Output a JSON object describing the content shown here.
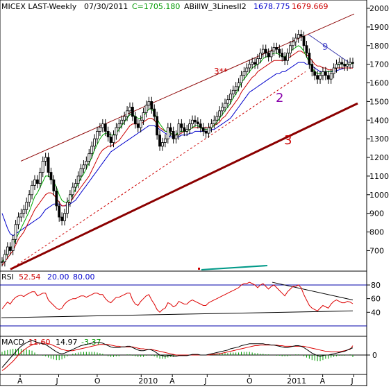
{
  "header": {
    "symbol": "MICEX LAST-Weekly",
    "date": "07/30/2011",
    "close_label": "C=1705.180",
    "indicator_name": "ABillW_3LinesII2",
    "indicator_value_1": "1678.775",
    "indicator_value_2": "1679.669"
  },
  "annotations": {
    "channel_upper": "3**",
    "channel_mid": "2",
    "channel_main": "3",
    "wave_label": "9"
  },
  "rsi": {
    "label": "RSI",
    "value": "52.54",
    "low": "20.00",
    "high": "80.00",
    "levels": [
      40,
      60,
      80
    ],
    "tick_labels": [
      "80",
      "60",
      "40"
    ]
  },
  "macd": {
    "label": "MACD",
    "value": "11.60",
    "signal": "14.97",
    "histogram": "-3.37",
    "tick_labels": [
      "0"
    ]
  },
  "x_axis": {
    "tick_labels": [
      "A",
      "J",
      "O",
      "2010",
      "A",
      "J",
      "O",
      "2011",
      "A",
      "J"
    ]
  },
  "colors": {
    "price_bars": "#000000",
    "sma_red": "#cc0000",
    "sma_green": "#00aa00",
    "sma_blue": "#0000cc",
    "channel": "#8b0000",
    "dashed": "#cc0000",
    "rsi": "#dd0000",
    "macd": "#000000",
    "signal": "#dd0000",
    "level_line": "#0000aa",
    "teal_marker": "#009988"
  },
  "chart_data": {
    "type": "candlestick",
    "y_ticks": [
      700,
      800,
      900,
      1000,
      1100,
      1200,
      1300,
      1400,
      1500,
      1600,
      1700,
      1800,
      1900,
      2000
    ],
    "ylim": [
      590,
      2000
    ],
    "weeks": 130,
    "close": [
      640,
      680,
      720,
      700,
      760,
      840,
      880,
      900,
      920,
      960,
      1000,
      1050,
      1080,
      1060,
      1120,
      1180,
      1200,
      1120,
      1080,
      1020,
      940,
      880,
      860,
      900,
      960,
      1000,
      1040,
      1060,
      1100,
      1140,
      1160,
      1180,
      1220,
      1260,
      1300,
      1340,
      1360,
      1380,
      1340,
      1310,
      1280,
      1320,
      1360,
      1380,
      1400,
      1420,
      1450,
      1470,
      1420,
      1380,
      1360,
      1400,
      1440,
      1480,
      1500,
      1460,
      1420,
      1320,
      1260,
      1280,
      1300,
      1360,
      1340,
      1300,
      1320,
      1380,
      1360,
      1340,
      1350,
      1380,
      1400,
      1390,
      1380,
      1360,
      1340,
      1330,
      1360,
      1380,
      1400,
      1420,
      1450,
      1470,
      1490,
      1510,
      1540,
      1560,
      1580,
      1600,
      1640,
      1660,
      1680,
      1700,
      1710,
      1700,
      1730,
      1760,
      1780,
      1760,
      1740,
      1770,
      1790,
      1780,
      1760,
      1740,
      1720,
      1760,
      1800,
      1820,
      1840,
      1860,
      1850,
      1800,
      1760,
      1700,
      1660,
      1640,
      1620,
      1640,
      1660,
      1640,
      1620,
      1650,
      1680,
      1700,
      1710,
      1700,
      1690,
      1700,
      1710,
      1705
    ],
    "sma_red": [
      620,
      640,
      660,
      680,
      700,
      730,
      760,
      780,
      800,
      830,
      860,
      890,
      920,
      940,
      960,
      980,
      1000,
      1010,
      1010,
      1000,
      980,
      960,
      940,
      940,
      950,
      960,
      980,
      1000,
      1020,
      1040,
      1060,
      1080,
      1100,
      1130,
      1160,
      1190,
      1220,
      1240,
      1250,
      1260,
      1260,
      1270,
      1280,
      1290,
      1310,
      1330,
      1350,
      1370,
      1380,
      1380,
      1380,
      1380,
      1390,
      1400,
      1410,
      1410,
      1400,
      1380,
      1360,
      1350,
      1340,
      1340,
      1330,
      1320,
      1320,
      1330,
      1330,
      1340,
      1340,
      1350,
      1360,
      1360,
      1360,
      1360,
      1360,
      1360,
      1360,
      1370,
      1370,
      1380,
      1390,
      1410,
      1420,
      1440,
      1460,
      1480,
      1500,
      1520,
      1550,
      1570,
      1590,
      1610,
      1630,
      1640,
      1660,
      1670,
      1680,
      1690,
      1700,
      1710,
      1720,
      1720,
      1720,
      1720,
      1720,
      1730,
      1740,
      1750,
      1760,
      1770,
      1770,
      1760,
      1750,
      1740,
      1720,
      1700,
      1690,
      1690,
      1680,
      1680,
      1670,
      1670,
      1670,
      1680,
      1680,
      1680,
      1680,
      1680,
      1680,
      1679
    ],
    "sma_green": [
      640,
      660,
      690,
      710,
      730,
      760,
      790,
      820,
      850,
      880,
      910,
      950,
      990,
      1010,
      1040,
      1070,
      1100,
      1100,
      1090,
      1070,
      1040,
      1000,
      970,
      960,
      960,
      980,
      1000,
      1030,
      1060,
      1090,
      1110,
      1140,
      1170,
      1200,
      1240,
      1270,
      1300,
      1320,
      1330,
      1330,
      1320,
      1320,
      1330,
      1350,
      1370,
      1390,
      1410,
      1430,
      1430,
      1420,
      1410,
      1410,
      1420,
      1440,
      1460,
      1460,
      1440,
      1410,
      1380,
      1360,
      1340,
      1340,
      1330,
      1320,
      1320,
      1340,
      1340,
      1340,
      1340,
      1350,
      1360,
      1370,
      1370,
      1360,
      1350,
      1350,
      1350,
      1360,
      1370,
      1390,
      1410,
      1430,
      1450,
      1470,
      1490,
      1520,
      1540,
      1570,
      1600,
      1620,
      1640,
      1660,
      1680,
      1690,
      1700,
      1710,
      1730,
      1740,
      1740,
      1750,
      1760,
      1760,
      1750,
      1740,
      1740,
      1750,
      1770,
      1780,
      1790,
      1800,
      1790,
      1770,
      1740,
      1710,
      1680,
      1660,
      1650,
      1650,
      1660,
      1660,
      1660,
      1660,
      1670,
      1690,
      1700,
      1700,
      1700,
      1700,
      1700,
      1705
    ],
    "sma_blue": [
      900,
      860,
      820,
      790,
      780,
      790,
      800,
      810,
      820,
      830,
      840,
      850,
      860,
      870,
      880,
      900,
      920,
      930,
      940,
      950,
      950,
      950,
      940,
      940,
      940,
      950,
      960,
      970,
      990,
      1010,
      1030,
      1050,
      1070,
      1090,
      1110,
      1130,
      1150,
      1170,
      1190,
      1210,
      1230,
      1240,
      1250,
      1260,
      1270,
      1280,
      1290,
      1300,
      1310,
      1320,
      1330,
      1340,
      1350,
      1360,
      1370,
      1370,
      1370,
      1360,
      1350,
      1340,
      1330,
      1320,
      1310,
      1310,
      1310,
      1310,
      1320,
      1320,
      1320,
      1330,
      1330,
      1340,
      1340,
      1340,
      1340,
      1340,
      1340,
      1350,
      1350,
      1360,
      1370,
      1380,
      1390,
      1400,
      1410,
      1430,
      1450,
      1470,
      1490,
      1510,
      1530,
      1550,
      1560,
      1570,
      1580,
      1590,
      1600,
      1610,
      1620,
      1630,
      1640,
      1650,
      1650,
      1660,
      1660,
      1670,
      1680,
      1690,
      1700,
      1710,
      1710,
      1710,
      1700,
      1700,
      1690,
      1680,
      1670,
      1660,
      1660,
      1660,
      1660,
      1660,
      1660,
      1665,
      1670,
      1675,
      1680,
      1680,
      1680,
      1680
    ],
    "rsi": [
      45,
      50,
      55,
      52,
      58,
      62,
      64,
      65,
      63,
      66,
      68,
      70,
      70,
      64,
      66,
      68,
      68,
      58,
      54,
      50,
      46,
      44,
      46,
      52,
      56,
      58,
      60,
      60,
      62,
      64,
      64,
      62,
      64,
      66,
      68,
      68,
      66,
      66,
      60,
      56,
      54,
      58,
      62,
      62,
      64,
      66,
      68,
      68,
      58,
      52,
      50,
      56,
      60,
      64,
      66,
      58,
      52,
      44,
      40,
      44,
      46,
      54,
      52,
      48,
      50,
      56,
      54,
      52,
      52,
      56,
      58,
      56,
      54,
      52,
      50,
      50,
      54,
      56,
      58,
      60,
      62,
      64,
      66,
      68,
      70,
      72,
      74,
      76,
      80,
      82,
      82,
      84,
      82,
      80,
      76,
      80,
      82,
      78,
      74,
      78,
      80,
      76,
      72,
      68,
      64,
      70,
      74,
      78,
      78,
      80,
      76,
      66,
      58,
      50,
      46,
      44,
      42,
      46,
      50,
      48,
      46,
      52,
      56,
      58,
      56,
      54,
      54,
      56,
      55,
      52.54
    ],
    "macd": [
      -20,
      -15,
      -10,
      -5,
      0,
      5,
      10,
      14,
      17,
      20,
      22,
      23,
      22,
      20,
      19,
      18,
      17,
      14,
      11,
      8,
      5,
      3,
      2,
      3,
      5,
      7,
      9,
      11,
      13,
      15,
      16,
      17,
      18,
      19,
      20,
      20,
      20,
      19,
      17,
      15,
      13,
      12,
      12,
      12,
      13,
      13,
      14,
      14,
      12,
      10,
      8,
      7,
      7,
      8,
      9,
      8,
      6,
      3,
      0,
      -1,
      -2,
      -1,
      -1,
      -2,
      -2,
      -1,
      -1,
      -1,
      -1,
      0,
      1,
      1,
      1,
      0,
      0,
      0,
      1,
      2,
      3,
      4,
      5,
      6,
      7,
      8,
      10,
      11,
      12,
      13,
      15,
      16,
      17,
      18,
      18,
      18,
      18,
      18,
      18,
      17,
      17,
      16,
      16,
      15,
      14,
      13,
      12,
      12,
      13,
      14,
      15,
      15,
      14,
      12,
      9,
      6,
      3,
      1,
      -1,
      -2,
      -1,
      0,
      0,
      1,
      2,
      3,
      4,
      5,
      6,
      8,
      10,
      11.6
    ],
    "signal": [
      -25,
      -22,
      -18,
      -14,
      -10,
      -5,
      0,
      4,
      8,
      11,
      14,
      16,
      18,
      19,
      19,
      19,
      19,
      18,
      17,
      15,
      13,
      11,
      9,
      8,
      7,
      7,
      7,
      8,
      9,
      10,
      11,
      12,
      13,
      14,
      15,
      16,
      17,
      17,
      17,
      17,
      16,
      15,
      14,
      14,
      13,
      13,
      13,
      13,
      13,
      12,
      11,
      10,
      10,
      9,
      9,
      9,
      8,
      7,
      6,
      5,
      4,
      3,
      2,
      1,
      0,
      0,
      0,
      0,
      0,
      0,
      0,
      0,
      0,
      0,
      0,
      0,
      0,
      1,
      1,
      2,
      2,
      3,
      4,
      5,
      6,
      7,
      8,
      9,
      10,
      11,
      12,
      13,
      14,
      15,
      15,
      16,
      16,
      16,
      16,
      16,
      16,
      16,
      15,
      15,
      14,
      14,
      14,
      14,
      14,
      14,
      14,
      14,
      13,
      12,
      11,
      10,
      9,
      8,
      7,
      6,
      6,
      5,
      5,
      5,
      5,
      6,
      7,
      8,
      9,
      14.97
    ]
  }
}
